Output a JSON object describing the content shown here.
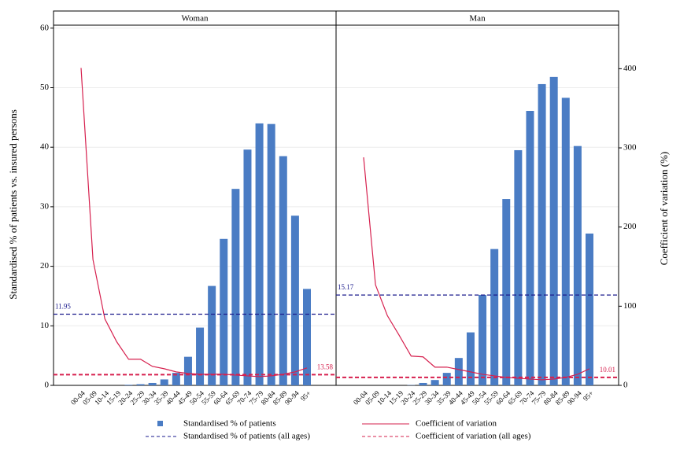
{
  "chart_data": [
    {
      "type": "bar",
      "title": "Woman",
      "ylabel": "Standardised % of patients vs. insured persons",
      "categories": [
        "00-04",
        "05-09",
        "10-14",
        "15-19",
        "20-24",
        "25-29",
        "30-34",
        "35-39",
        "40-44",
        "45-49",
        "50-54",
        "55-59",
        "60-64",
        "65-69",
        "70-74",
        "75-79",
        "80-84",
        "85-89",
        "90-94",
        "95+"
      ],
      "series": [
        {
          "name": "Standardised % of patients",
          "type": "bar",
          "color": "#4a7cc4",
          "values": [
            0,
            0,
            0,
            0,
            0.1,
            0.2,
            0.4,
            1.0,
            2.1,
            4.8,
            9.7,
            16.7,
            24.6,
            33.0,
            39.6,
            44.0,
            43.9,
            38.5,
            28.5,
            16.2
          ]
        },
        {
          "name": "Coefficient of variation",
          "type": "line",
          "axis": "y2",
          "color": "#d6204e",
          "values": [
            401,
            159,
            84,
            55,
            33,
            33,
            24,
            21,
            17,
            15,
            14,
            14,
            14,
            13,
            12,
            11,
            12,
            14,
            17,
            22
          ]
        }
      ],
      "reference_lines": [
        {
          "name": "Standardised % of patients (all ages)",
          "value": 11.95,
          "axis": "y",
          "color": "#1a1a8c"
        },
        {
          "name": "Coefficient of variation (all ages)",
          "value": 13.58,
          "axis": "y2",
          "color": "#d6204e"
        }
      ],
      "ylim": [
        0,
        60.5
      ],
      "yticks": [
        0,
        10,
        20,
        30,
        40,
        50,
        60
      ],
      "y2lim": [
        0,
        455
      ],
      "grid": true
    },
    {
      "type": "bar",
      "title": "Man",
      "y2label": "Coefficient of variation (%)",
      "categories": [
        "00-04",
        "05-09",
        "10-14",
        "15-19",
        "20-24",
        "25-29",
        "30-34",
        "35-39",
        "40-44",
        "45-49",
        "50-54",
        "55-59",
        "60-64",
        "65-69",
        "70-74",
        "75-79",
        "80-84",
        "85-89",
        "90-94",
        "95+"
      ],
      "series": [
        {
          "type": "bar",
          "color": "#4a7cc4",
          "values": [
            0,
            0,
            0,
            0,
            0.05,
            0.4,
            0.9,
            2.1,
            4.6,
            8.9,
            15.2,
            22.9,
            31.3,
            39.5,
            46.1,
            50.6,
            51.8,
            48.3,
            40.2,
            25.5
          ]
        },
        {
          "type": "line",
          "axis": "y2",
          "color": "#d6204e",
          "values": [
            288,
            127,
            88,
            63,
            37,
            36,
            23,
            23,
            20,
            17,
            14,
            12,
            10,
            9,
            8,
            7,
            8,
            10,
            14,
            21
          ]
        }
      ],
      "reference_lines": [
        {
          "value": 15.17,
          "axis": "y",
          "color": "#1a1a8c"
        },
        {
          "value": 10.01,
          "axis": "y2",
          "color": "#d6204e"
        }
      ],
      "ylim": [
        0,
        60.5
      ],
      "y2lim": [
        0,
        455
      ],
      "y2ticks": [
        0,
        100,
        200,
        300,
        400
      ],
      "grid": true
    }
  ]
}
